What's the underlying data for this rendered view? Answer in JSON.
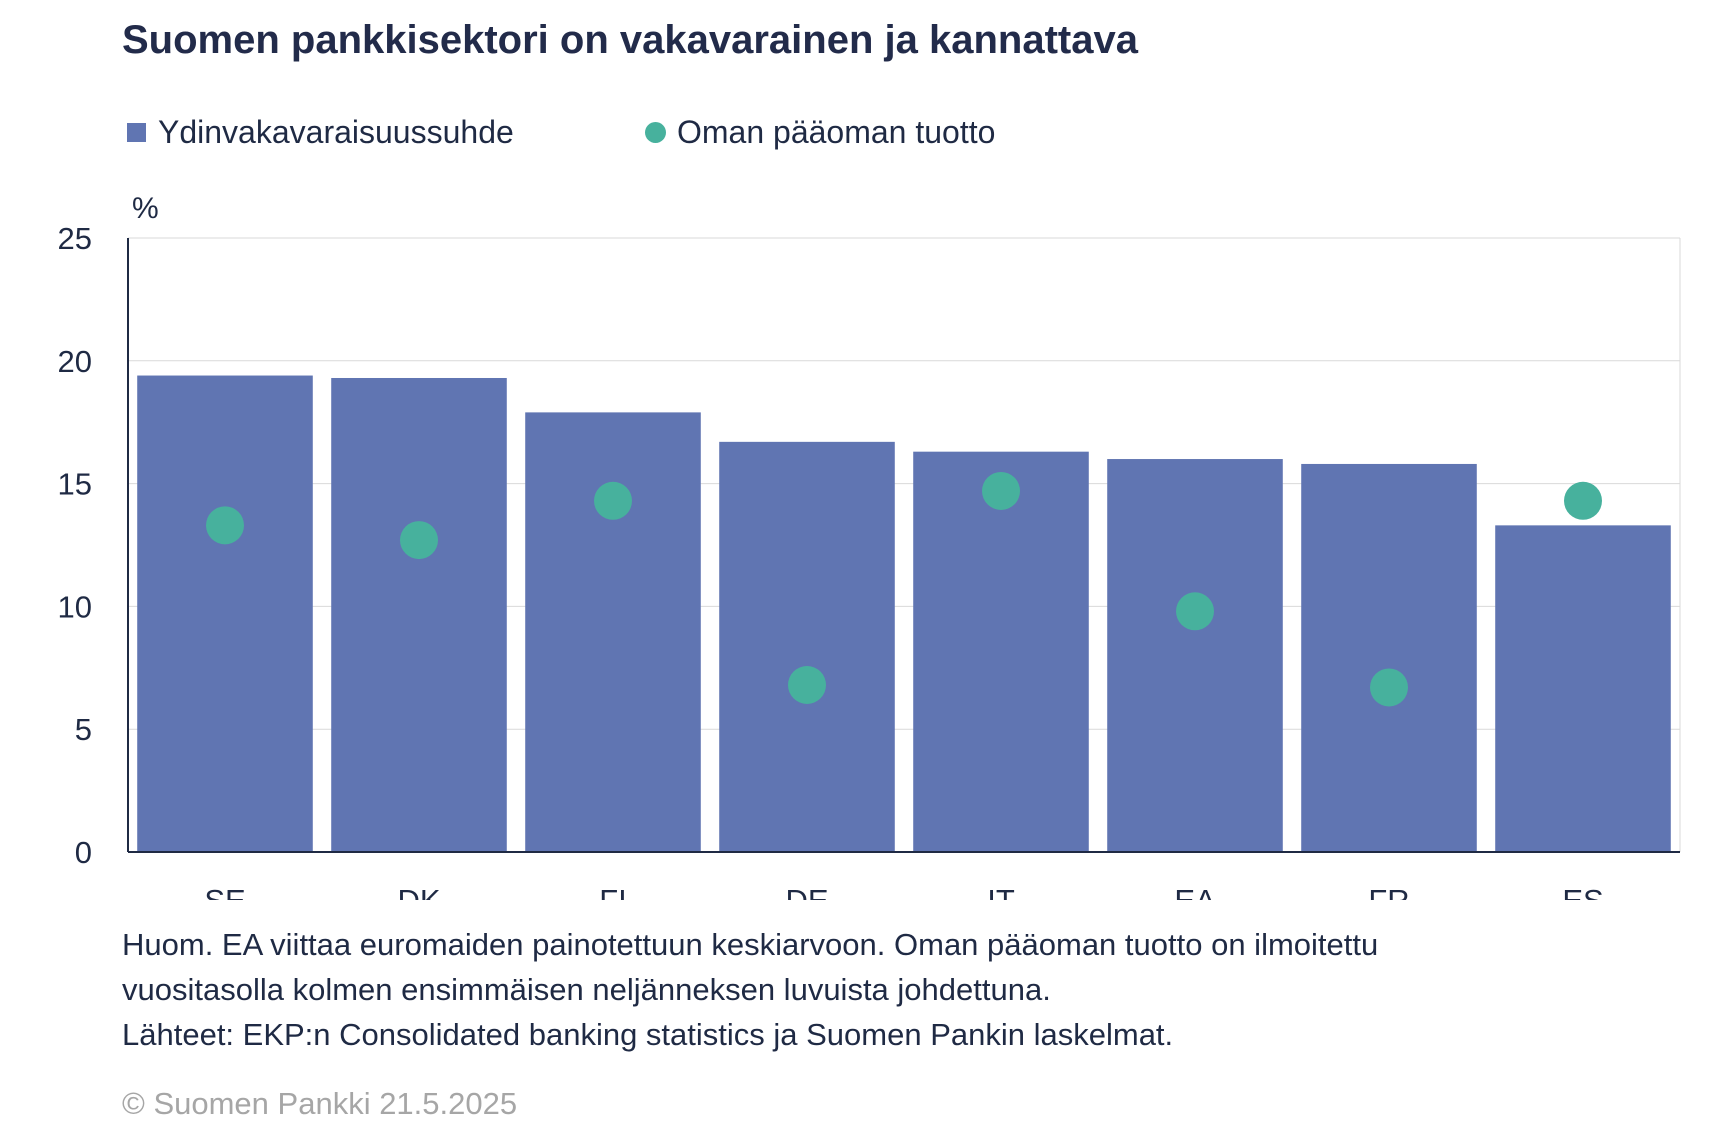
{
  "title": "Suomen pankkisektori on vakavarainen ja kannattava",
  "colors": {
    "bar": "#6075b2",
    "dot": "#47b19d",
    "axis": "#1f2a44",
    "grid": "#d9d9d9",
    "text": "#1f2a44"
  },
  "legend": {
    "bar_label": "Ydinvakavaraisuussuhde",
    "dot_label": "Oman pääoman tuotto"
  },
  "chart_data": {
    "type": "bar",
    "ylabel": "%",
    "ylim": [
      0,
      25
    ],
    "yticks": [
      "0",
      "5",
      "10",
      "15",
      "20",
      "25"
    ],
    "categories": [
      "SE",
      "DK",
      "FI",
      "DE",
      "IT",
      "EA",
      "FR",
      "ES"
    ],
    "series": [
      {
        "name": "Ydinvakavaraisuussuhde",
        "type": "bar",
        "values": [
          19.4,
          19.3,
          17.9,
          16.7,
          16.3,
          16.0,
          15.8,
          13.3
        ]
      },
      {
        "name": "Oman pääoman tuotto",
        "type": "scatter",
        "values": [
          13.3,
          12.7,
          14.3,
          6.8,
          14.7,
          9.8,
          6.7,
          14.3
        ]
      }
    ],
    "grid": true,
    "legend_position": "top-left"
  },
  "note": {
    "line1": "Huom. EA viittaa euromaiden painotettuun keskiarvoon. Oman pääoman tuotto on ilmoitettu",
    "line2": "vuositasolla kolmen ensimmäisen neljänneksen luvuista johdettuna.",
    "line3": "Lähteet: EKP:n Consolidated banking statistics ja Suomen Pankin laskelmat."
  },
  "copyright": "© Suomen Pankki 21.5.2025"
}
